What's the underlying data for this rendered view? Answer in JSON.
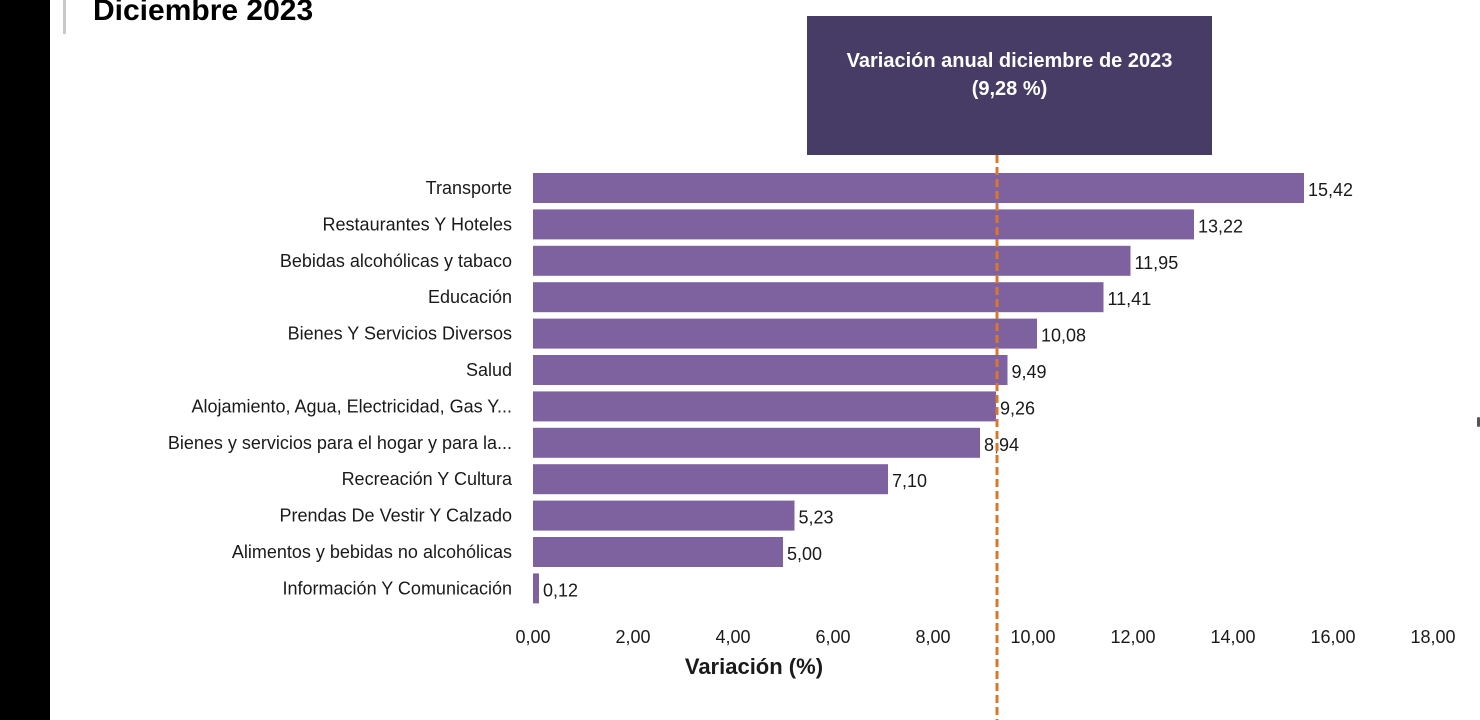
{
  "page": {
    "title": "Diciembre 2023"
  },
  "annotation": {
    "line1": "Variación anual diciembre de 2023",
    "line2": "(9,28 %)",
    "reference_value": 9.28,
    "line_color": "#d9782d"
  },
  "chart_data": {
    "type": "bar",
    "orientation": "horizontal",
    "title": "Diciembre 2023",
    "xlabel": "Variación (%)",
    "ylabel": "",
    "xlim": [
      0,
      18
    ],
    "xticks": [
      0,
      2,
      4,
      6,
      8,
      10,
      12,
      14,
      16,
      18
    ],
    "xtick_labels": [
      "0,00",
      "2,00",
      "4,00",
      "6,00",
      "8,00",
      "10,00",
      "12,00",
      "14,00",
      "16,00",
      "18,00"
    ],
    "grid": false,
    "bar_color": "#7e62a0",
    "categories": [
      "Transporte",
      "Restaurantes Y Hoteles",
      "Bebidas alcohólicas y tabaco",
      "Educación",
      "Bienes Y Servicios Diversos",
      "Salud",
      "Alojamiento, Agua, Electricidad, Gas Y...",
      "Bienes y servicios para el hogar y para la...",
      "Recreación Y Cultura",
      "Prendas De Vestir Y Calzado",
      "Alimentos y bebidas no alcohólicas",
      "Información Y Comunicación"
    ],
    "values": [
      15.42,
      13.22,
      11.95,
      11.41,
      10.08,
      9.49,
      9.26,
      8.94,
      7.1,
      5.23,
      5.0,
      0.12
    ],
    "value_labels": [
      "15,42",
      "13,22",
      "11,95",
      "11,41",
      "10,08",
      "9,49",
      "9,26",
      "8,94",
      "7,10",
      "5,23",
      "5,00",
      "0,12"
    ]
  }
}
